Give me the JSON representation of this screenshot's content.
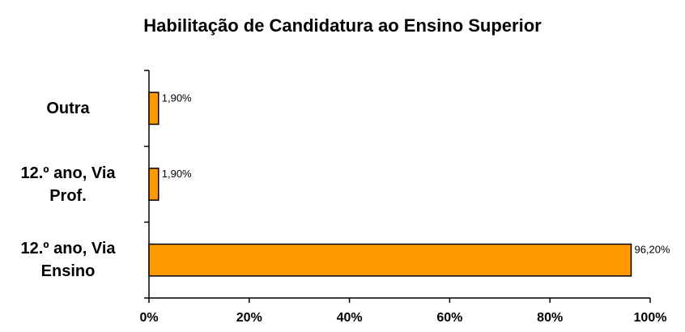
{
  "chart_data": {
    "type": "barh",
    "title": "Habilitação de Candidatura ao Ensino Superior",
    "categories": [
      "Outra",
      "12.º ano, Via Prof.",
      "12.º ano, Via Ensino"
    ],
    "values": [
      1.9,
      1.9,
      96.2
    ],
    "value_labels": [
      "1,90%",
      "1,90%",
      "96,20%"
    ],
    "color": "#ff9900",
    "xlim": [
      0,
      100
    ],
    "xticks": [
      {
        "value": 0,
        "label": "0%"
      },
      {
        "value": 20,
        "label": "20%"
      },
      {
        "value": 40,
        "label": "40%"
      },
      {
        "value": 60,
        "label": "60%"
      },
      {
        "value": 80,
        "label": "80%"
      },
      {
        "value": 100,
        "label": "100%"
      }
    ]
  }
}
